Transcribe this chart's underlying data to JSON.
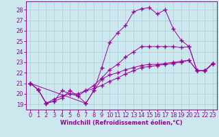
{
  "background_color": "#cce8ee",
  "grid_color": "#aaccd8",
  "line_color": "#990099",
  "marker": "+",
  "marker_size": 4,
  "marker_lw": 1.0,
  "xlabel": "Windchill (Refroidissement éolien,°C)",
  "xlabel_fontsize": 6.0,
  "tick_fontsize": 6.0,
  "xlim": [
    -0.5,
    23.5
  ],
  "ylim": [
    18.5,
    28.8
  ],
  "yticks": [
    19,
    20,
    21,
    22,
    23,
    24,
    25,
    26,
    27,
    28
  ],
  "xticks": [
    0,
    1,
    2,
    3,
    4,
    5,
    6,
    7,
    8,
    9,
    10,
    11,
    12,
    13,
    14,
    15,
    16,
    17,
    18,
    19,
    20,
    21,
    22,
    23
  ],
  "line1_x": [
    0,
    1,
    2,
    3,
    4,
    5,
    6,
    7,
    8,
    9,
    10,
    11,
    12,
    13,
    14,
    15,
    16,
    17,
    18,
    19,
    20,
    21,
    22,
    23
  ],
  "line1_y": [
    21.0,
    20.4,
    19.1,
    19.3,
    19.6,
    20.3,
    19.8,
    19.1,
    20.3,
    22.5,
    24.9,
    25.8,
    26.5,
    27.8,
    28.1,
    28.2,
    27.6,
    28.0,
    26.2,
    25.1,
    24.5,
    22.2,
    22.2,
    22.9
  ],
  "line2_x": [
    0,
    1,
    2,
    3,
    4,
    5,
    6,
    7,
    8,
    9,
    10,
    11,
    12,
    13,
    14,
    15,
    16,
    17,
    18,
    19,
    20,
    21,
    22,
    23
  ],
  "line2_y": [
    21.0,
    20.4,
    19.1,
    19.3,
    20.3,
    20.0,
    19.8,
    20.3,
    20.8,
    21.5,
    22.3,
    22.8,
    23.5,
    24.0,
    24.5,
    24.5,
    24.5,
    24.5,
    24.5,
    24.4,
    24.5,
    22.2,
    22.2,
    22.9
  ],
  "line3_x": [
    0,
    1,
    2,
    3,
    4,
    5,
    6,
    7,
    8,
    9,
    10,
    11,
    12,
    13,
    14,
    15,
    16,
    17,
    18,
    19,
    20,
    21,
    22,
    23
  ],
  "line3_y": [
    21.0,
    20.4,
    19.1,
    19.5,
    19.8,
    20.0,
    20.0,
    20.3,
    20.5,
    20.8,
    21.2,
    21.5,
    21.9,
    22.2,
    22.5,
    22.6,
    22.7,
    22.8,
    22.9,
    23.0,
    23.2,
    22.2,
    22.2,
    22.9
  ],
  "line4_x": [
    0,
    7,
    8,
    9,
    10,
    11,
    12,
    13,
    14,
    15,
    16,
    17,
    18,
    19,
    20,
    21,
    22,
    23
  ],
  "line4_y": [
    21.0,
    19.1,
    20.3,
    21.4,
    21.8,
    22.0,
    22.3,
    22.5,
    22.7,
    22.8,
    22.8,
    22.9,
    23.0,
    23.1,
    23.2,
    22.2,
    22.2,
    22.9
  ]
}
